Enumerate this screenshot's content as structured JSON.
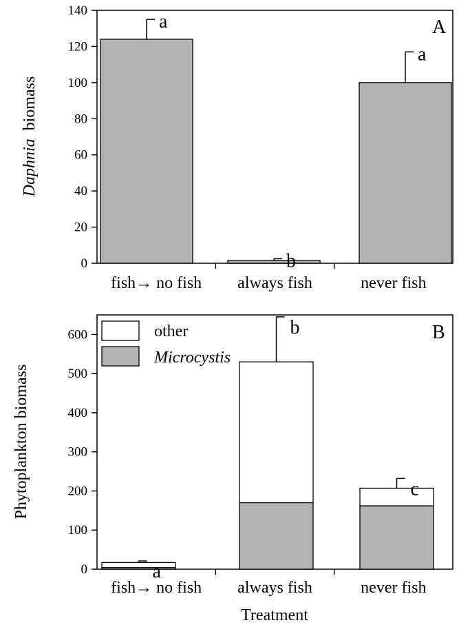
{
  "colors": {
    "bar_fill": "#b3b3b3",
    "bar_stroke": "#000000",
    "other_fill": "#ffffff",
    "axis": "#000000",
    "background": "#ffffff"
  },
  "xlabel": "Treatment",
  "chart_data": [
    {
      "type": "bar",
      "panel": "A",
      "title": "",
      "ylabel_italic": "Daphnia",
      "ylabel_rest": "biomass",
      "xlabel": "",
      "categories": [
        "fish→ no fish",
        "always fish",
        "never fish"
      ],
      "series": [
        {
          "values": [
            124,
            1.5,
            100
          ],
          "error_upper": [
            135,
            2.5,
            117
          ],
          "significance": [
            "a",
            "b",
            "a"
          ]
        }
      ],
      "ylim": [
        0,
        140
      ],
      "yticks": [
        0,
        20,
        40,
        60,
        80,
        100,
        120,
        140
      ],
      "grid": false
    },
    {
      "type": "stacked_bar",
      "panel": "B",
      "title": "",
      "ylabel": "Phytoplankton biomass",
      "xlabel": "Treatment",
      "categories": [
        "fish→ no fish",
        "always fish",
        "never fish"
      ],
      "series": [
        {
          "name": "Microcystis",
          "values": [
            4,
            170,
            162
          ]
        },
        {
          "name": "other",
          "values": [
            13,
            360,
            45
          ]
        }
      ],
      "totals": [
        17,
        530,
        207
      ],
      "error_upper": [
        21,
        645,
        232
      ],
      "significance": [
        "a",
        "b",
        "c"
      ],
      "ylim": [
        0,
        650
      ],
      "yticks": [
        0,
        100,
        200,
        300,
        400,
        500,
        600
      ],
      "legend": {
        "position": "top-left",
        "entries": [
          "other",
          "Microcystis"
        ]
      },
      "grid": false
    }
  ]
}
